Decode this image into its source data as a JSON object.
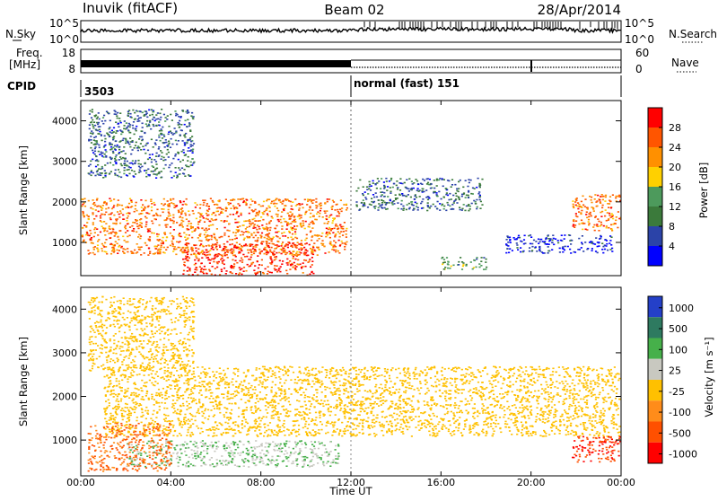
{
  "header": {
    "station": "Inuvik (fitACF)",
    "beam": "Beam 02",
    "date": "28/Apr/2014"
  },
  "top_panels": {
    "nsky_label": "N.Sky",
    "nsearch_label": "N.Search",
    "noise_ticks": [
      "10^5",
      "10^0"
    ],
    "freq_label_1": "Freq.",
    "freq_label_2": "[MHz]",
    "freq_ticks": [
      "18",
      "8"
    ],
    "nave_label": "Nave",
    "nave_ticks": [
      "60",
      "0"
    ],
    "cpid_label": "CPID",
    "cpid_segments": [
      {
        "label": "3503",
        "start_hour": 0,
        "end_hour": 12
      },
      {
        "label": "normal (fast) 151",
        "start_hour": 12,
        "end_hour": 24
      }
    ]
  },
  "power_colorbar": {
    "label": "Power [dB]",
    "ticks": [
      "4",
      "8",
      "12",
      "16",
      "20",
      "24",
      "28"
    ],
    "colors": [
      "#0000ff",
      "#2b43a8",
      "#3b7a3b",
      "#4d9a5c",
      "#ffd000",
      "#ff9000",
      "#ff5500",
      "#ff0000"
    ]
  },
  "velocity_colorbar": {
    "label": "Velocity [m s⁻¹]",
    "ticks": [
      "1000",
      "500",
      "100",
      "25",
      "-25",
      "-100",
      "-500",
      "-1000"
    ],
    "colors": [
      "#2440c8",
      "#2e7a60",
      "#46b04a",
      "#c8c8c0",
      "#ffc000",
      "#ff8c1a",
      "#ff5000",
      "#ff0000"
    ]
  },
  "axes": {
    "ylabel": "Slant Range [km]",
    "yticks": [
      "1000",
      "2000",
      "3000",
      "4000"
    ],
    "xticks": [
      "00:00",
      "04:00",
      "08:00",
      "12:00",
      "16:00",
      "20:00",
      "00:00"
    ],
    "xlabel": "Time UT"
  },
  "chart_data": [
    {
      "type": "heatmap",
      "title": "",
      "ylabel": "Slant Range [km]",
      "colorbar_label": "Power [dB]",
      "xlim": [
        0,
        24
      ],
      "ylim": [
        180,
        4500
      ],
      "regions": [
        {
          "start_hour": 0.0,
          "end_hour": 11.8,
          "range_km": [
            700,
            2100
          ],
          "power_db": 24
        },
        {
          "start_hour": 4.5,
          "end_hour": 10.3,
          "range_km": [
            200,
            1000
          ],
          "power_db": 28
        },
        {
          "start_hour": 0.3,
          "end_hour": 5.0,
          "range_km": [
            2600,
            4300
          ],
          "power_db": 8
        },
        {
          "start_hour": 12.2,
          "end_hour": 17.8,
          "range_km": [
            1800,
            2600
          ],
          "power_db": 8
        },
        {
          "start_hour": 16.0,
          "end_hour": 18.0,
          "range_km": [
            350,
            650
          ],
          "power_db": 12
        },
        {
          "start_hour": 18.8,
          "end_hour": 23.6,
          "range_km": [
            750,
            1200
          ],
          "power_db": 4
        },
        {
          "start_hour": 21.8,
          "end_hour": 24.0,
          "range_km": [
            1300,
            2200
          ],
          "power_db": 24
        }
      ]
    },
    {
      "type": "heatmap",
      "title": "",
      "ylabel": "Slant Range [km]",
      "colorbar_label": "Velocity [m s⁻¹]",
      "xlim": [
        0,
        24
      ],
      "ylim": [
        180,
        4500
      ],
      "regions": [
        {
          "start_hour": 1.0,
          "end_hour": 23.9,
          "range_km": [
            1100,
            2700
          ],
          "velocity_ms": 0
        },
        {
          "start_hour": 2.0,
          "end_hour": 11.5,
          "range_km": [
            400,
            1000
          ],
          "velocity_ms": 100
        },
        {
          "start_hour": 0.3,
          "end_hour": 4.0,
          "range_km": [
            300,
            1400
          ],
          "velocity_ms": -100
        },
        {
          "start_hour": 21.8,
          "end_hour": 24.0,
          "range_km": [
            500,
            1100
          ],
          "velocity_ms": -500
        },
        {
          "start_hour": 0.3,
          "end_hour": 5.0,
          "range_km": [
            2600,
            4300
          ],
          "velocity_ms": 0
        }
      ]
    }
  ]
}
